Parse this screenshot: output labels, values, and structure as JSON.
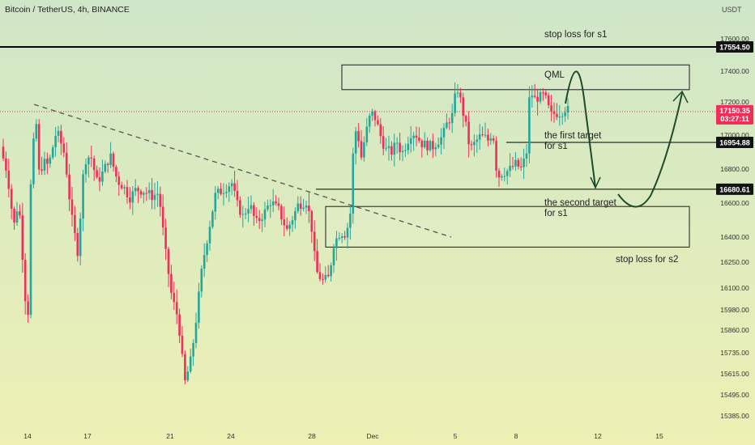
{
  "header": {
    "symbol": "Bitcoin / TetherUS, 4h, BINANCE",
    "currency": "USDT"
  },
  "chart_data": {
    "type": "candlestick",
    "ylim": [
      15330,
      17760
    ],
    "y_ticks": [
      17600,
      17400,
      17200,
      17000,
      16800,
      16600,
      16400,
      16250,
      16100,
      15980,
      15860,
      15735,
      15615,
      15495,
      15385
    ],
    "x_ticks": [
      "14",
      "17",
      "21",
      "24",
      "28",
      "Dec",
      "5",
      "8",
      "12",
      "15"
    ],
    "horizontal_levels": [
      {
        "value": 17554.5,
        "label": "17554.50"
      },
      {
        "value": 16954.88,
        "label": "16954.88"
      },
      {
        "value": 16680.61,
        "label": "16680.61"
      }
    ],
    "current_price": {
      "value": 17150.35,
      "label": "17150.35",
      "timer": "03:27:11"
    },
    "annotations": {
      "stop_loss_s1": "stop loss for s1",
      "qml": "QML",
      "first_target_line1": "the first target",
      "first_target_line2": "for s1",
      "second_target_line1": "the second target",
      "second_target_line2": "for s1",
      "stop_loss_s2": "stop loss for s2"
    },
    "zones": [
      {
        "name": "qml-zone",
        "top": 17440,
        "bottom": 17280
      },
      {
        "name": "s2-zone",
        "top": 16580,
        "bottom": 16340
      }
    ],
    "colors": {
      "up": "#26a69a",
      "down": "#ef2f5a",
      "level": "#000000",
      "current": "#ef2f5a"
    }
  }
}
